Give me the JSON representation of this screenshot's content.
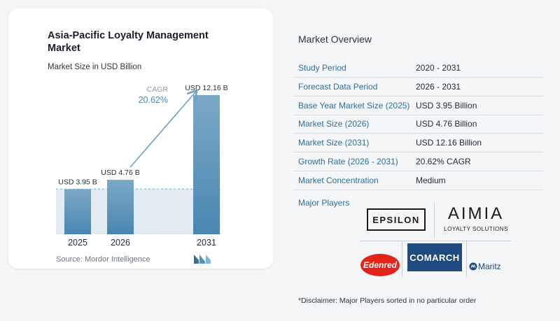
{
  "chart_data": {
    "type": "bar",
    "title": "Asia-Pacific Loyalty Management Market",
    "subtitle": "Market Size in USD Billion",
    "categories": [
      "2025",
      "2026",
      "2031"
    ],
    "values": [
      3.95,
      4.76,
      12.16
    ],
    "value_labels": [
      "USD 3.95 B",
      "USD 4.76 B",
      "USD 12.16 B"
    ],
    "cagr_label": "CAGR",
    "cagr_value": "20.62%",
    "ylim": [
      0,
      12.16
    ],
    "grid": false,
    "colors": {
      "bar_top": "#7aa9c7",
      "bar_bottom": "#4a86b0",
      "band": "#e3ecf3",
      "arrow": "#6d9fc4",
      "dashed": "#8aa5bb"
    }
  },
  "source": "Source:  Mordor Intelligence",
  "overview": {
    "title": "Market Overview",
    "rows": [
      {
        "label": "Study Period",
        "value": "2020 - 2031"
      },
      {
        "label": "Forecast Data Period",
        "value": "2026 - 2031"
      },
      {
        "label": "Base Year Market Size (2025)",
        "value": "USD 3.95 Billion"
      },
      {
        "label": "Market Size (2026)",
        "value": "USD 4.76 Billion"
      },
      {
        "label": "Market Size (2031)",
        "value": "USD 12.16 Billion"
      },
      {
        "label": "Growth Rate (2026 - 2031)",
        "value": "20.62% CAGR"
      },
      {
        "label": "Market Concentration",
        "value": "Medium"
      }
    ],
    "players_label": "Major Players",
    "players": {
      "epsilon": "EPSILON",
      "aimia": "AIMIA",
      "aimia_sub": "LOYALTY SOLUTIONS",
      "edenred": "Edenred",
      "comarch": "COMARCH",
      "maritz": "Maritz"
    },
    "disclaimer": "*Disclaimer: Major Players sorted in no particular order"
  }
}
